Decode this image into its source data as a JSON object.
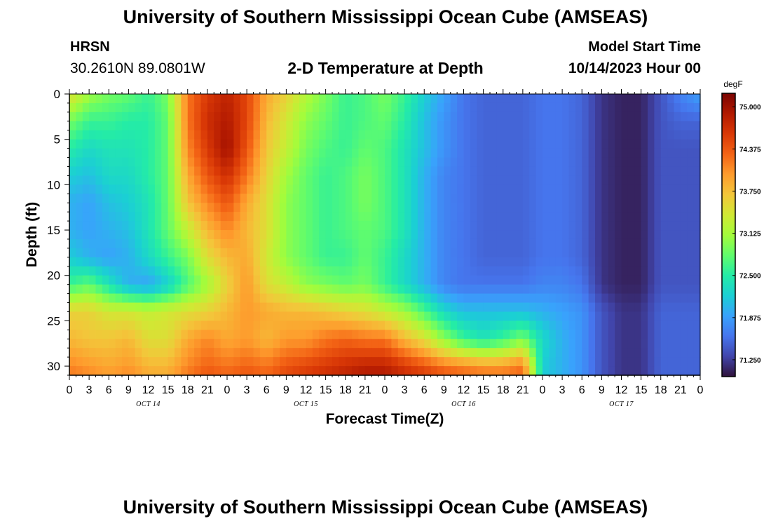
{
  "header": {
    "title": "University of Southern Mississippi Ocean Cube (AMSEAS)",
    "station": "HRSN",
    "coordinates": "30.2610N  89.0801W",
    "subtitle": "2-D Temperature at Depth",
    "start_label": "Model Start Time",
    "start_value": "10/14/2023 Hour 00"
  },
  "footer": {
    "title": "University of Southern Mississippi Ocean Cube (AMSEAS)"
  },
  "chart_data": {
    "type": "heatmap",
    "xlabel": "Forecast Time(Z)",
    "ylabel": "Depth (ft)",
    "x_ticks": [
      "0",
      "3",
      "6",
      "9",
      "12",
      "15",
      "18",
      "21",
      "0",
      "3",
      "6",
      "9",
      "12",
      "15",
      "18",
      "21",
      "0",
      "3",
      "6",
      "9",
      "12",
      "15",
      "18",
      "21",
      "0",
      "3",
      "6",
      "9",
      "12",
      "15",
      "18",
      "21",
      "0"
    ],
    "day_labels": [
      "OCT 14",
      "OCT 15",
      "OCT 16",
      "OCT 17"
    ],
    "x_range_hours": [
      0,
      96
    ],
    "depths_ft": [
      0,
      3,
      6,
      9,
      12,
      15,
      18,
      21,
      24,
      27,
      30,
      31
    ],
    "y_ticks": [
      0,
      5,
      10,
      15,
      20,
      25,
      30
    ],
    "y_range": [
      31,
      0
    ],
    "colorbar": {
      "unit": "degF",
      "ticks": [
        "75.000",
        "74.375",
        "73.750",
        "73.125",
        "72.500",
        "71.875",
        "71.250"
      ],
      "min": 71.0,
      "max": 75.2,
      "colors": [
        "#30123b",
        "#4145ab",
        "#4675ed",
        "#39a2fc",
        "#1bcfd4",
        "#24eca6",
        "#61fc6c",
        "#a4fc3b",
        "#d1e834",
        "#f3c63a",
        "#fe9b2d",
        "#f36315",
        "#d93806",
        "#b11901",
        "#7a0402"
      ]
    },
    "times_hours": [
      0,
      3,
      6,
      9,
      12,
      15,
      18,
      21,
      24,
      27,
      30,
      33,
      36,
      39,
      42,
      45,
      48,
      51,
      54,
      57,
      60,
      63,
      66,
      69,
      72,
      75,
      78,
      81,
      84,
      87,
      90,
      93,
      96
    ],
    "temperature_degF": [
      [
        73.5,
        73.1,
        72.9,
        72.8,
        72.6,
        72.9,
        74.2,
        74.6,
        74.8,
        74.5,
        73.9,
        73.6,
        73.2,
        72.9,
        72.6,
        72.7,
        72.9,
        72.6,
        72.2,
        71.9,
        71.6,
        71.5,
        71.5,
        71.5,
        71.6,
        71.6,
        71.5,
        71.2,
        71.1,
        71.1,
        71.4,
        71.7,
        71.9
      ],
      [
        72.9,
        72.6,
        72.6,
        72.5,
        72.5,
        72.8,
        74.2,
        74.7,
        74.9,
        74.5,
        73.8,
        73.4,
        73.0,
        72.8,
        72.6,
        72.7,
        72.8,
        72.5,
        72.1,
        71.8,
        71.6,
        71.5,
        71.5,
        71.5,
        71.6,
        71.6,
        71.5,
        71.2,
        71.1,
        71.1,
        71.4,
        71.5,
        71.5
      ],
      [
        72.5,
        72.3,
        72.4,
        72.4,
        72.5,
        72.8,
        74.1,
        74.6,
        75.0,
        74.4,
        73.7,
        73.3,
        72.9,
        72.7,
        72.6,
        72.8,
        72.7,
        72.4,
        72.1,
        71.8,
        71.6,
        71.5,
        71.5,
        71.5,
        71.6,
        71.6,
        71.5,
        71.2,
        71.1,
        71.1,
        71.4,
        71.4,
        71.4
      ],
      [
        72.2,
        72.1,
        72.3,
        72.3,
        72.5,
        72.8,
        73.9,
        74.4,
        74.7,
        74.2,
        73.6,
        73.1,
        72.8,
        72.6,
        72.7,
        72.9,
        72.7,
        72.4,
        72.0,
        71.7,
        71.6,
        71.5,
        71.5,
        71.5,
        71.6,
        71.6,
        71.5,
        71.2,
        71.1,
        71.1,
        71.4,
        71.4,
        71.4
      ],
      [
        72.0,
        71.9,
        72.1,
        72.2,
        72.4,
        72.8,
        73.7,
        74.1,
        74.4,
        73.9,
        73.5,
        73.0,
        72.8,
        72.6,
        72.7,
        72.9,
        72.7,
        72.4,
        72.0,
        71.7,
        71.6,
        71.5,
        71.5,
        71.5,
        71.6,
        71.6,
        71.5,
        71.2,
        71.1,
        71.1,
        71.4,
        71.4,
        71.4
      ],
      [
        72.0,
        71.9,
        72.0,
        72.1,
        72.4,
        72.8,
        73.3,
        73.8,
        74.1,
        73.8,
        73.5,
        73.0,
        72.8,
        72.6,
        72.7,
        72.8,
        72.7,
        72.4,
        72.0,
        71.7,
        71.6,
        71.5,
        71.5,
        71.5,
        71.6,
        71.6,
        71.5,
        71.2,
        71.1,
        71.1,
        71.4,
        71.4,
        71.4
      ],
      [
        72.2,
        72.0,
        71.9,
        72.0,
        72.3,
        72.6,
        72.9,
        73.5,
        73.8,
        73.9,
        73.4,
        73.0,
        72.8,
        72.6,
        72.6,
        72.8,
        72.6,
        72.3,
        72.0,
        71.7,
        71.6,
        71.5,
        71.5,
        71.5,
        71.6,
        71.6,
        71.5,
        71.2,
        71.1,
        71.1,
        71.4,
        71.4,
        71.4
      ],
      [
        72.6,
        72.8,
        72.4,
        72.0,
        71.9,
        72.2,
        72.7,
        73.1,
        73.6,
        74.0,
        73.5,
        73.3,
        73.0,
        72.9,
        72.8,
        72.9,
        72.6,
        72.3,
        72.0,
        71.7,
        71.6,
        71.6,
        71.6,
        71.6,
        71.7,
        71.7,
        71.6,
        71.2,
        71.1,
        71.1,
        71.4,
        71.4,
        71.4
      ],
      [
        73.6,
        73.6,
        73.4,
        73.4,
        73.3,
        73.4,
        73.5,
        73.6,
        73.8,
        74.0,
        73.9,
        73.8,
        73.8,
        73.7,
        73.6,
        73.5,
        73.3,
        73.1,
        72.7,
        72.3,
        72.1,
        72.1,
        72.1,
        72.1,
        72.0,
        71.9,
        71.8,
        71.4,
        71.2,
        71.2,
        71.5,
        71.5,
        71.5
      ],
      [
        73.8,
        73.7,
        73.7,
        73.8,
        73.5,
        73.5,
        73.9,
        74.1,
        73.9,
        74.0,
        73.8,
        74.0,
        74.0,
        74.2,
        74.3,
        74.2,
        74.2,
        73.8,
        73.5,
        73.0,
        72.6,
        72.4,
        72.6,
        72.9,
        72.3,
        72.0,
        71.8,
        71.4,
        71.2,
        71.2,
        71.5,
        71.5,
        71.5
      ],
      [
        74.1,
        74.0,
        73.9,
        74.0,
        73.8,
        73.8,
        74.1,
        74.3,
        74.2,
        74.3,
        74.2,
        74.4,
        74.5,
        74.6,
        74.7,
        74.8,
        74.8,
        74.6,
        74.4,
        74.2,
        74.1,
        74.0,
        74.0,
        74.2,
        72.2,
        72.0,
        71.8,
        71.4,
        71.2,
        71.2,
        71.5,
        71.5,
        71.5
      ],
      [
        74.2,
        74.1,
        74.0,
        74.1,
        73.9,
        73.9,
        74.2,
        74.4,
        74.3,
        74.4,
        74.3,
        74.5,
        74.6,
        74.7,
        74.8,
        74.9,
        74.9,
        74.7,
        74.6,
        74.4,
        74.3,
        74.2,
        74.2,
        74.3,
        72.2,
        72.0,
        71.8,
        71.4,
        71.2,
        71.2,
        71.5,
        71.5,
        71.5
      ]
    ]
  }
}
